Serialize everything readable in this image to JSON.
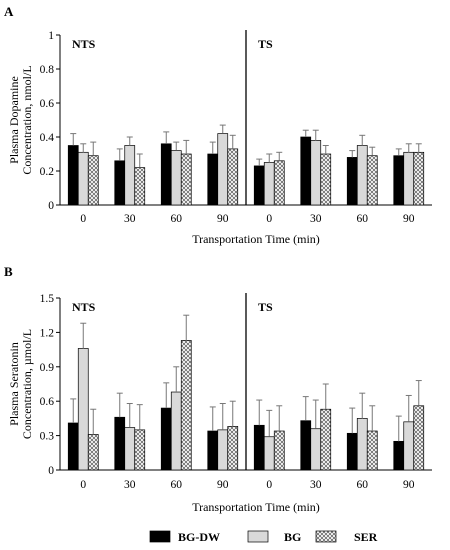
{
  "legend": [
    {
      "name": "BG-DW",
      "fill": "#000000",
      "pattern": "solid"
    },
    {
      "name": "BG",
      "fill": "#d9d9d9",
      "pattern": "solid"
    },
    {
      "name": "SER",
      "fill": "#ffffff",
      "pattern": "crosshatch"
    }
  ],
  "chart_data": [
    {
      "type": "bar",
      "panel": "A",
      "ylabel_lines": [
        "Plasma Dopamine",
        "Concentration, nmol/L"
      ],
      "xlabel": "Transportation Time (min)",
      "ylim": [
        0,
        1
      ],
      "yticks": [
        "0",
        "0.2",
        "0.4",
        "0.6",
        "0.8",
        "1"
      ],
      "ytick_values": [
        0,
        0.2,
        0.4,
        0.6,
        0.8,
        1
      ],
      "groups": [
        "NTS",
        "TS"
      ],
      "categories": [
        "0",
        "30",
        "60",
        "90"
      ],
      "grid": false,
      "legend_position": "bottom",
      "series": [
        {
          "name": "BG-DW",
          "values": {
            "NTS": [
              0.35,
              0.26,
              0.36,
              0.3
            ],
            "TS": [
              0.23,
              0.4,
              0.28,
              0.29
            ]
          },
          "errors": {
            "NTS": [
              0.07,
              0.07,
              0.07,
              0.07
            ],
            "TS": [
              0.04,
              0.04,
              0.04,
              0.04
            ]
          }
        },
        {
          "name": "BG",
          "values": {
            "NTS": [
              0.31,
              0.35,
              0.32,
              0.42
            ],
            "TS": [
              0.25,
              0.38,
              0.35,
              0.31
            ]
          },
          "errors": {
            "NTS": [
              0.05,
              0.05,
              0.05,
              0.05
            ],
            "TS": [
              0.05,
              0.06,
              0.06,
              0.05
            ]
          }
        },
        {
          "name": "SER",
          "values": {
            "NTS": [
              0.29,
              0.22,
              0.3,
              0.33
            ],
            "TS": [
              0.26,
              0.3,
              0.29,
              0.31
            ]
          },
          "errors": {
            "NTS": [
              0.08,
              0.08,
              0.08,
              0.08
            ],
            "TS": [
              0.05,
              0.05,
              0.05,
              0.05
            ]
          }
        }
      ]
    },
    {
      "type": "bar",
      "panel": "B",
      "ylabel_lines": [
        "Plasma Seratonin",
        "Concentration, µmol/L"
      ],
      "xlabel": "Transportation Time (min)",
      "ylim": [
        0,
        1.5
      ],
      "yticks": [
        "0",
        "0.3",
        "0.6",
        "0.9",
        "1.2",
        "1.5"
      ],
      "ytick_values": [
        0,
        0.3,
        0.6,
        0.9,
        1.2,
        1.5
      ],
      "groups": [
        "NTS",
        "TS"
      ],
      "categories": [
        "0",
        "30",
        "60",
        "90"
      ],
      "grid": false,
      "legend_position": "bottom",
      "series": [
        {
          "name": "BG-DW",
          "values": {
            "NTS": [
              0.41,
              0.46,
              0.54,
              0.34
            ],
            "TS": [
              0.39,
              0.43,
              0.32,
              0.25
            ]
          },
          "errors": {
            "NTS": [
              0.21,
              0.21,
              0.22,
              0.21
            ],
            "TS": [
              0.22,
              0.21,
              0.22,
              0.22
            ]
          }
        },
        {
          "name": "BG",
          "values": {
            "NTS": [
              1.06,
              0.37,
              0.68,
              0.35
            ],
            "TS": [
              0.29,
              0.36,
              0.45,
              0.42
            ]
          },
          "errors": {
            "NTS": [
              0.22,
              0.21,
              0.22,
              0.23
            ],
            "TS": [
              0.23,
              0.25,
              0.22,
              0.23
            ]
          }
        },
        {
          "name": "SER",
          "values": {
            "NTS": [
              0.31,
              0.35,
              1.13,
              0.38
            ],
            "TS": [
              0.34,
              0.53,
              0.34,
              0.56
            ]
          },
          "errors": {
            "NTS": [
              0.22,
              0.22,
              0.22,
              0.22
            ],
            "TS": [
              0.22,
              0.22,
              0.22,
              0.22
            ]
          }
        }
      ]
    }
  ]
}
